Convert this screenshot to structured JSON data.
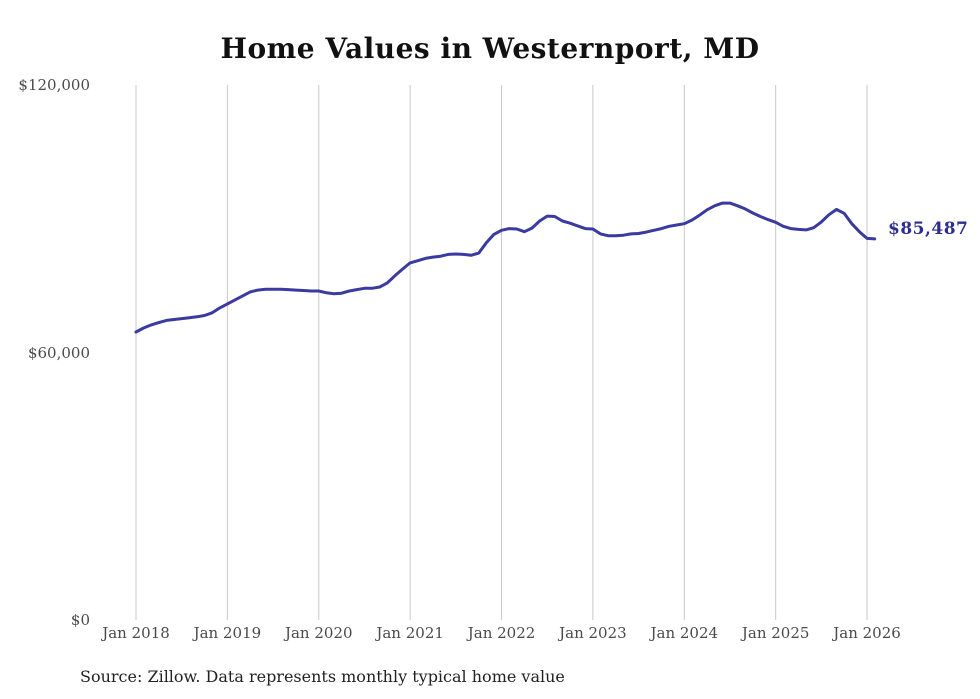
{
  "title": "Home Values in Westernport, MD",
  "end_label": "$85,487",
  "source_note": "Source: Zillow. Data represents monthly typical home value",
  "colors": {
    "background": "#ffffff",
    "line": "#3a3aa0",
    "end_label": "#2d2d8f",
    "gridline": "#c9c9c9",
    "title_text": "#111111",
    "axis_text": "#4a4a4a",
    "source_text": "#222222"
  },
  "chart_data": {
    "type": "line",
    "title": "Home Values in Westernport, MD",
    "xlabel": "",
    "ylabel": "",
    "ylim": [
      0,
      120000
    ],
    "grid": "vertical-only",
    "legend": "none",
    "x_range": {
      "start": "Jan 2018",
      "end": "Feb 2026",
      "interval": "monthly"
    },
    "x_tick_labels": [
      "Jan 2018",
      "Jan 2019",
      "Jan 2020",
      "Jan 2021",
      "Jan 2022",
      "Jan 2023",
      "Jan 2024",
      "Jan 2025",
      "Jan 2026"
    ],
    "y_ticks": [
      {
        "value": 0,
        "label": "$0"
      },
      {
        "value": 60000,
        "label": "$60,000"
      },
      {
        "value": 120000,
        "label": "$120,000"
      }
    ],
    "series": [
      {
        "name": "Monthly typical home value",
        "values": [
          64600,
          65500,
          66200,
          66700,
          67200,
          67400,
          67600,
          67800,
          68000,
          68300,
          68900,
          70000,
          70900,
          71800,
          72700,
          73600,
          74000,
          74200,
          74200,
          74200,
          74100,
          74000,
          73900,
          73800,
          73800,
          73400,
          73200,
          73300,
          73800,
          74100,
          74400,
          74400,
          74700,
          75600,
          77200,
          78700,
          80100,
          80600,
          81100,
          81400,
          81600,
          82000,
          82100,
          82000,
          81800,
          82300,
          84600,
          86500,
          87400,
          87800,
          87700,
          87100,
          87900,
          89500,
          90600,
          90500,
          89500,
          89000,
          88400,
          87800,
          87700,
          86600,
          86200,
          86200,
          86300,
          86600,
          86700,
          87000,
          87400,
          87800,
          88300,
          88600,
          88900,
          89700,
          90800,
          92000,
          92900,
          93500,
          93500,
          92900,
          92200,
          91300,
          90500,
          89800,
          89200,
          88300,
          87800,
          87600,
          87500,
          88000,
          89300,
          90900,
          92100,
          91200,
          88900,
          87100,
          85600,
          85487
        ]
      }
    ],
    "end_value": 85487
  }
}
